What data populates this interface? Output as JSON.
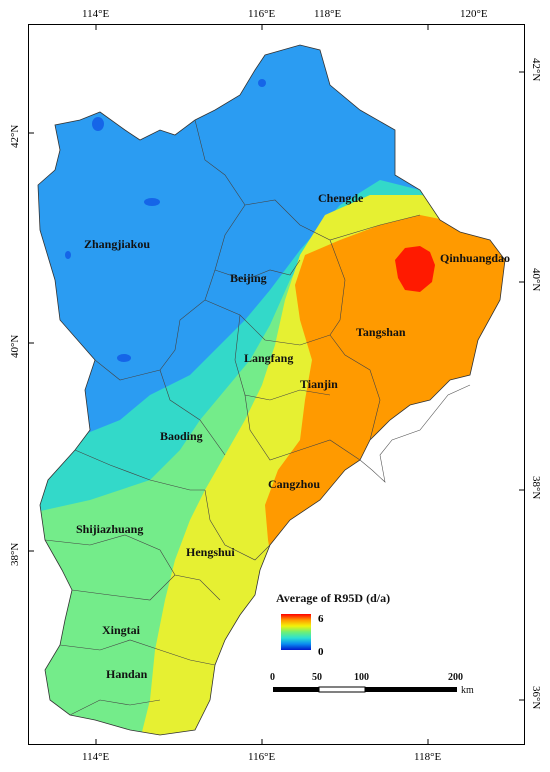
{
  "map": {
    "legend": {
      "title": "Average of R95D (d/a)",
      "max_label": "6",
      "min_label": "0",
      "colors": [
        "#ff0000",
        "#ff9900",
        "#f2f20a",
        "#6ef075",
        "#2ce0d3",
        "#0a8cf0",
        "#0019cc"
      ]
    },
    "scale": {
      "labels": [
        "0",
        "50",
        "100",
        "200"
      ],
      "unit": "km"
    },
    "ticks": {
      "top": [
        "114°E",
        "116°E",
        "118°E",
        "120°E"
      ],
      "bottom": [
        "114°E",
        "116°E",
        "118°E"
      ],
      "left": [
        "42°N",
        "40°N",
        "38°N"
      ],
      "right": [
        "42°N",
        "40°N",
        "38°N",
        "36°N"
      ]
    },
    "cities": [
      "Chengde",
      "Zhangjiakou",
      "Beijing",
      "Qinhuangdao",
      "Tangshan",
      "Langfang",
      "Tianjin",
      "Baoding",
      "Cangzhou",
      "Shijiazhuang",
      "Hengshui",
      "Xingtai",
      "Handan"
    ],
    "zone_colors": {
      "dark_blue": "#1565e8",
      "light_blue": "#2b9cf2",
      "cyan": "#33d9c9",
      "light_green": "#74ec8a",
      "yellow": "#e6f032",
      "orange": "#ff9a00",
      "red": "#ff1a00"
    }
  }
}
